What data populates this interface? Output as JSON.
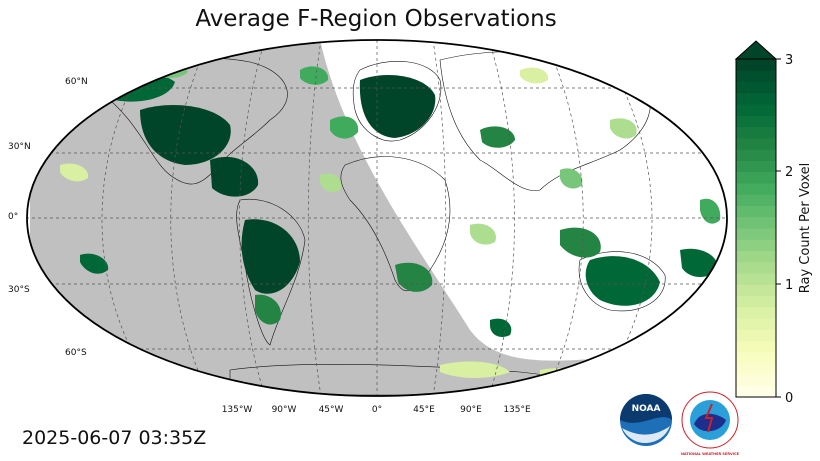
{
  "title": "Average F-Region Observations",
  "timestamp": "2025-06-07 03:35Z",
  "map": {
    "projection": "robinson",
    "lat_labels": [
      "60°N",
      "30°N",
      "0°",
      "30°S",
      "60°S"
    ],
    "lon_labels": [
      "135°W",
      "90°W",
      "45°W",
      "0°",
      "45°E",
      "90°E",
      "135°E"
    ],
    "night_shade_color": "#c0c0c0",
    "gridlines": true
  },
  "colorbar": {
    "label": "Ray Count Per Voxel",
    "ticks": [
      "0",
      "1",
      "2",
      "3"
    ],
    "range": [
      0,
      3
    ],
    "extend": "max",
    "colors": [
      "#ffffe5",
      "#f7fcb9",
      "#d9f0a3",
      "#addd8e",
      "#78c679",
      "#41ab5d",
      "#238443",
      "#006837",
      "#004529"
    ]
  },
  "logos": {
    "noaa": "NOAA",
    "nws": "NATIONAL WEATHER SERVICE"
  }
}
